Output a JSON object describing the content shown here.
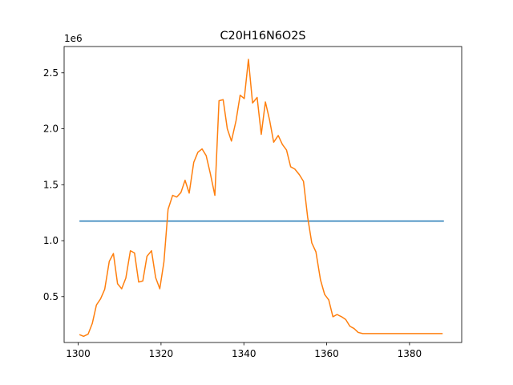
{
  "chart_data": {
    "type": "line",
    "title": "C20H16N6O2S",
    "xlabel": "",
    "ylabel": "",
    "y_offset_label": "1e6",
    "xlim": [
      1296.6,
      1392.6
    ],
    "ylim": [
      90000,
      2735000
    ],
    "xticks": [
      1300,
      1320,
      1340,
      1360,
      1380
    ],
    "xtick_labels": [
      "1300",
      "1320",
      "1340",
      "1360",
      "1380"
    ],
    "yticks": [
      500000,
      1000000,
      1500000,
      2000000,
      2500000
    ],
    "ytick_labels": [
      "0.5",
      "1.0",
      "1.5",
      "2.0",
      "2.5"
    ],
    "grid": false,
    "series": [
      {
        "color": "#1f77b4",
        "x": [
          1300.3,
          1388.3
        ],
        "y": [
          1175000,
          1175000
        ]
      },
      {
        "color": "#ff7f0e",
        "x": [
          1300.3,
          1301.3,
          1302.4,
          1303.4,
          1304.4,
          1305.4,
          1306.4,
          1307.5,
          1308.5,
          1309.5,
          1310.5,
          1311.5,
          1312.6,
          1313.6,
          1314.6,
          1315.6,
          1316.6,
          1317.7,
          1318.7,
          1319.7,
          1320.7,
          1321.7,
          1322.8,
          1323.8,
          1324.8,
          1325.8,
          1326.8,
          1327.9,
          1328.9,
          1329.9,
          1330.9,
          1331.9,
          1333.0,
          1334.0,
          1335.0,
          1336.0,
          1337.0,
          1338.1,
          1339.1,
          1340.1,
          1341.1,
          1342.1,
          1343.2,
          1344.2,
          1345.2,
          1346.2,
          1347.2,
          1348.3,
          1349.3,
          1350.3,
          1351.3,
          1352.3,
          1353.4,
          1354.4,
          1355.4,
          1356.4,
          1357.4,
          1358.5,
          1359.5,
          1360.5,
          1361.5,
          1362.5,
          1363.6,
          1364.6,
          1365.6,
          1366.6,
          1367.6,
          1368.7,
          1369.7,
          1370.7,
          1371.7,
          1372.7,
          1373.8,
          1374.8,
          1375.8,
          1376.8,
          1377.8,
          1378.9,
          1379.9,
          1380.9,
          1381.9,
          1382.9,
          1384.0,
          1385.0,
          1386.0,
          1387.0,
          1388.0
        ],
        "y": [
          160000,
          145000,
          165000,
          260000,
          425000,
          480000,
          565000,
          815000,
          885000,
          615000,
          570000,
          665000,
          910000,
          890000,
          630000,
          640000,
          860000,
          910000,
          670000,
          570000,
          810000,
          1280000,
          1405000,
          1390000,
          1430000,
          1540000,
          1425000,
          1700000,
          1790000,
          1820000,
          1760000,
          1600000,
          1405000,
          2250000,
          2260000,
          2000000,
          1890000,
          2070000,
          2300000,
          2270000,
          2620000,
          2230000,
          2280000,
          1950000,
          2240000,
          2080000,
          1880000,
          1940000,
          1860000,
          1810000,
          1660000,
          1640000,
          1590000,
          1530000,
          1210000,
          980000,
          900000,
          650000,
          520000,
          470000,
          320000,
          340000,
          320000,
          295000,
          235000,
          215000,
          180000,
          170000,
          170000,
          170000,
          170000,
          170000,
          170000,
          170000,
          170000,
          170000,
          170000,
          170000,
          170000,
          170000,
          170000,
          170000,
          170000,
          170000,
          170000,
          170000,
          170000
        ]
      }
    ]
  }
}
